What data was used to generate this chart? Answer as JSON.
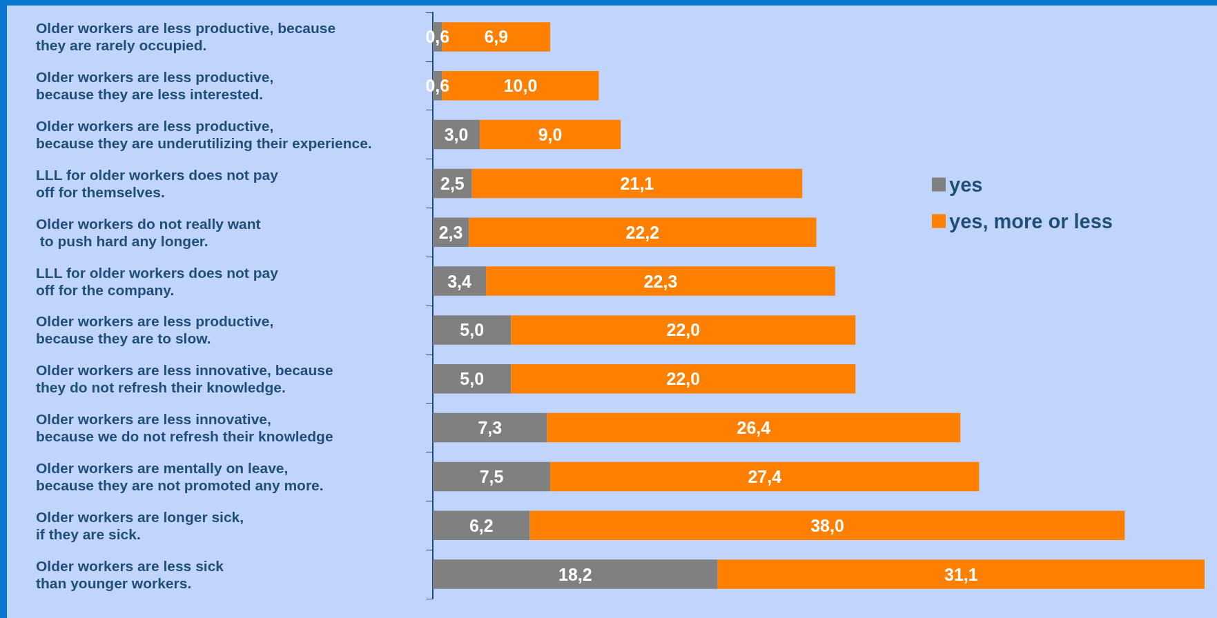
{
  "chart_data": {
    "type": "bar",
    "orientation": "horizontal",
    "stacked": true,
    "legend": "right",
    "grid": false,
    "categories": [
      "Older workers are less productive, because\nthey are rarely occupied.",
      "Older workers are less productive,\nbecause they are less interested.",
      "Older workers are less productive,\nbecause they are underutilizing their experience.",
      "LLL for older workers does not pay\noff for themselves.",
      "Older workers do not really want\n to push hard any longer.",
      "LLL for older workers does not pay\noff for the company.",
      "Older workers are less productive,\nbecause they are to slow.",
      "Older workers are less innovative, because\nthey do not refresh their knowledge.",
      "Older workers are less innovative,\nbecause we do not refresh their knowledge",
      "Older workers are mentally on leave,\nbecause they are not promoted any more.",
      "Older workers are longer sick,\nif they are sick.",
      "Older workers are less sick\nthan younger workers."
    ],
    "series": [
      {
        "name": "yes",
        "color": "#808080",
        "values": [
          0.6,
          0.6,
          3.0,
          2.5,
          2.3,
          3.4,
          5.0,
          5.0,
          7.3,
          7.5,
          6.2,
          18.2
        ],
        "value_labels": [
          "0,6",
          "0,6",
          "3,0",
          "2,5",
          "2,3",
          "3,4",
          "5,0",
          "5,0",
          "7,3",
          "7,5",
          "6,2",
          "18,2"
        ]
      },
      {
        "name": "yes, more or less",
        "color": "#ff7f00",
        "values": [
          6.9,
          10.0,
          9.0,
          21.1,
          22.2,
          22.3,
          22.0,
          22.0,
          26.4,
          27.4,
          38.0,
          31.1
        ],
        "value_labels": [
          "6,9",
          "10,0",
          "9,0",
          "21,1",
          "22,2",
          "22,3",
          "22,0",
          "22,0",
          "26,4",
          "27,4",
          "38,0",
          "31,1"
        ]
      }
    ]
  }
}
